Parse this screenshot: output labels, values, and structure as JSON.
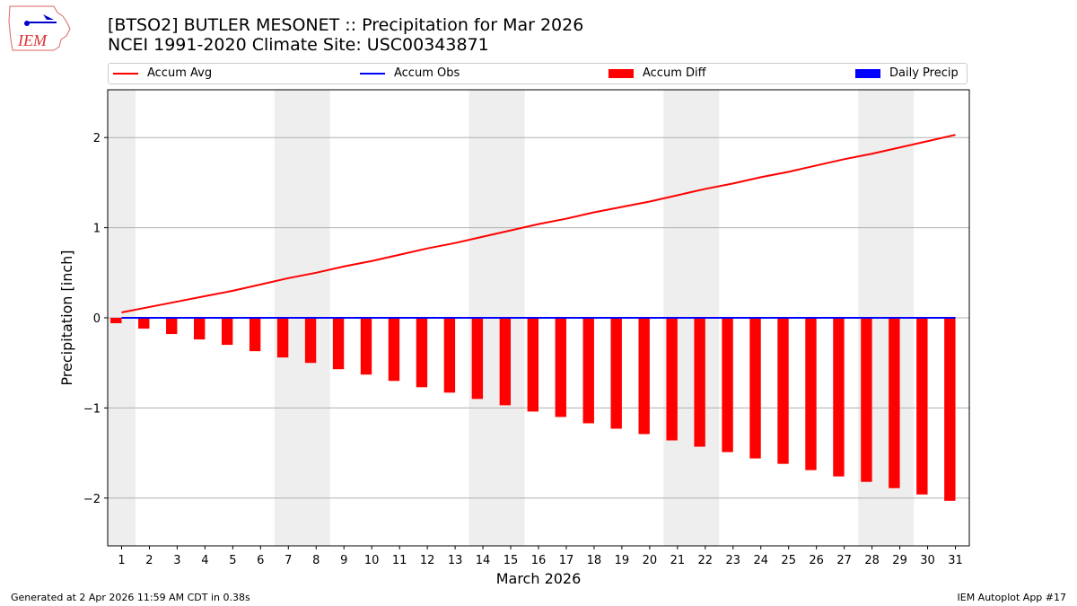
{
  "header": {
    "title_line1": "[BTSO2] BUTLER MESONET :: Precipitation for Mar 2026",
    "title_line2": "NCEI 1991-2020 Climate Site: USC00343871"
  },
  "logo": {
    "text": "IEM"
  },
  "footer": {
    "left": "Generated at 2 Apr 2026 11:59 AM CDT in 0.38s",
    "right": "IEM Autoplot App #17"
  },
  "chart_data": {
    "type": "bar",
    "xlabel": "March 2026",
    "ylabel": "Precipitation [inch]",
    "xlim": [
      0.5,
      31.5
    ],
    "ylim": [
      -2.53,
      2.53
    ],
    "yticks": [
      -2,
      -1,
      0,
      1,
      2
    ],
    "ytick_labels": [
      "−2",
      "−1",
      "0",
      "1",
      "2"
    ],
    "grid": "y",
    "legend_placement": "top",
    "weekend_shading": [
      [
        0.5,
        1.5
      ],
      [
        6.5,
        8.5
      ],
      [
        13.5,
        15.5
      ],
      [
        20.5,
        22.5
      ],
      [
        27.5,
        29.5
      ]
    ],
    "shade_color": "#eeeeee",
    "x": [
      1,
      2,
      3,
      4,
      5,
      6,
      7,
      8,
      9,
      10,
      11,
      12,
      13,
      14,
      15,
      16,
      17,
      18,
      19,
      20,
      21,
      22,
      23,
      24,
      25,
      26,
      27,
      28,
      29,
      30,
      31
    ],
    "series": [
      {
        "name": "Accum Avg",
        "type": "line",
        "color": "#ff0000",
        "values": [
          0.06,
          0.12,
          0.18,
          0.24,
          0.3,
          0.37,
          0.44,
          0.5,
          0.57,
          0.63,
          0.7,
          0.77,
          0.83,
          0.9,
          0.97,
          1.04,
          1.1,
          1.17,
          1.23,
          1.29,
          1.36,
          1.43,
          1.49,
          1.56,
          1.62,
          1.69,
          1.76,
          1.82,
          1.89,
          1.96,
          2.03
        ]
      },
      {
        "name": "Accum Obs",
        "type": "line",
        "color": "#0000ff",
        "values": [
          0,
          0,
          0,
          0,
          0,
          0,
          0,
          0,
          0,
          0,
          0,
          0,
          0,
          0,
          0,
          0,
          0,
          0,
          0,
          0,
          0,
          0,
          0,
          0,
          0,
          0,
          0,
          0,
          0,
          0,
          0
        ]
      },
      {
        "name": "Accum Diff",
        "type": "bar",
        "color": "#ff0000",
        "values": [
          -0.06,
          -0.12,
          -0.18,
          -0.24,
          -0.3,
          -0.37,
          -0.44,
          -0.5,
          -0.57,
          -0.63,
          -0.7,
          -0.77,
          -0.83,
          -0.9,
          -0.97,
          -1.04,
          -1.1,
          -1.17,
          -1.23,
          -1.29,
          -1.36,
          -1.43,
          -1.49,
          -1.56,
          -1.62,
          -1.69,
          -1.76,
          -1.82,
          -1.89,
          -1.96,
          -2.03
        ]
      },
      {
        "name": "Daily Precip",
        "type": "bar",
        "color": "#0000ff",
        "values": [
          0,
          0,
          0,
          0,
          0,
          0,
          0,
          0,
          0,
          0,
          0,
          0,
          0,
          0,
          0,
          0,
          0,
          0,
          0,
          0,
          0,
          0,
          0,
          0,
          0,
          0,
          0,
          0,
          0,
          0,
          0
        ]
      }
    ]
  }
}
